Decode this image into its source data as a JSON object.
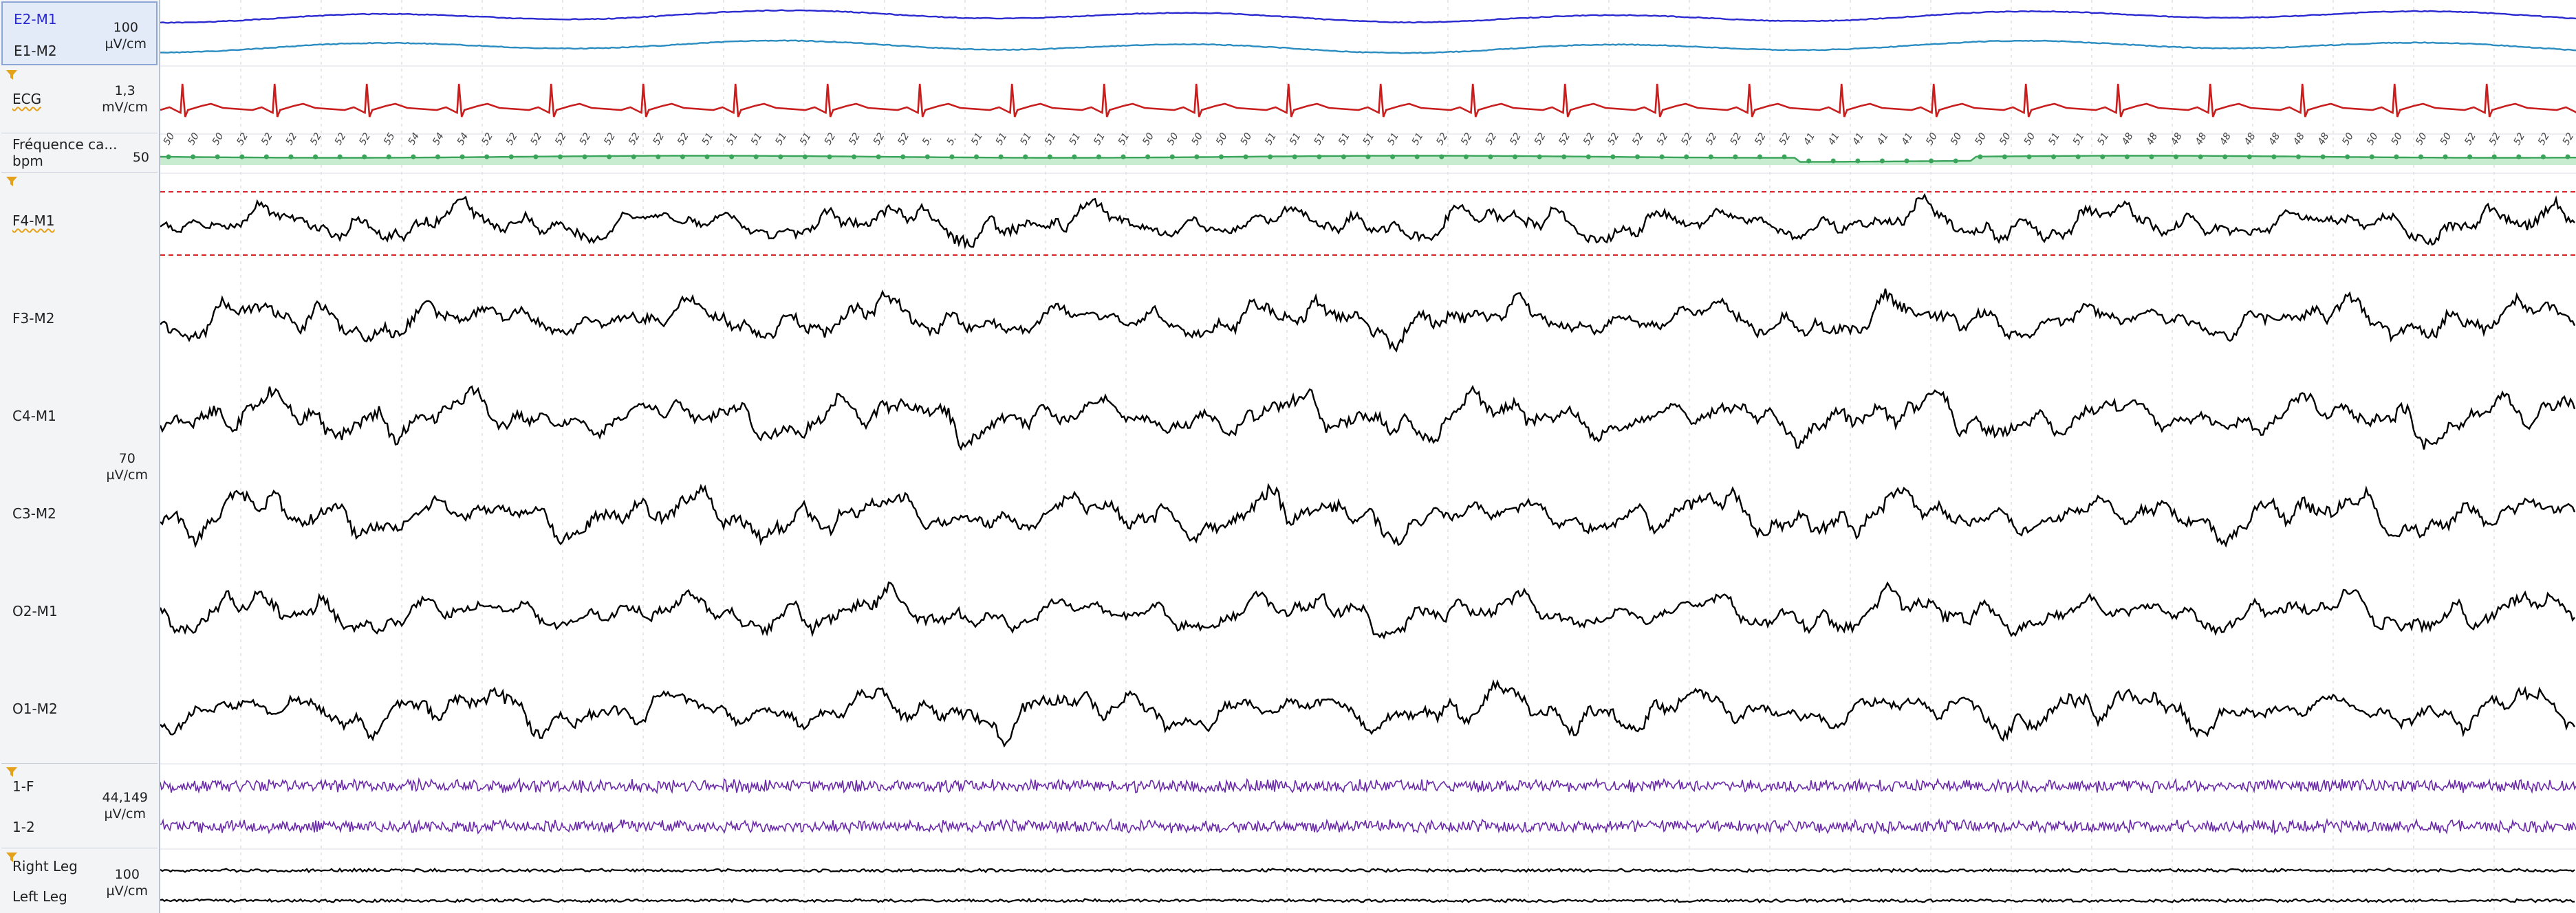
{
  "groups": {
    "eog": {
      "channels": [
        "E2-M1",
        "E1-M2"
      ],
      "scale_value": "100",
      "scale_unit": "µV/cm"
    },
    "ecg": {
      "channel": "ECG",
      "scale_value": "1,3",
      "scale_unit": "mV/cm"
    },
    "hr": {
      "channel": "Fréquence ca...",
      "unit": "bpm",
      "scale_value": "50",
      "beat_labels": [
        "50",
        "50",
        "50",
        "52",
        "52",
        "52",
        "52",
        "52",
        "52",
        "55",
        "54",
        "54",
        "54",
        "52",
        "52",
        "52",
        "52",
        "52",
        "52",
        "52",
        "52",
        "52",
        "51",
        "51",
        "51",
        "51",
        "51",
        "52",
        "52",
        "52",
        "52",
        "5.",
        "5.",
        "51",
        "51",
        "51",
        "51",
        "51",
        "51",
        "51",
        "50",
        "50",
        "50",
        "50",
        "50",
        "51",
        "51",
        "51",
        "51",
        "51",
        "51",
        "51",
        "52",
        "52",
        "52",
        "52",
        "52",
        "52",
        "52",
        "52",
        "52",
        "52",
        "52",
        "52",
        "52",
        "52",
        "52",
        "41",
        "41",
        "41",
        "41",
        "41",
        "50",
        "50",
        "50",
        "50",
        "50",
        "51",
        "51",
        "51",
        "48",
        "48",
        "48",
        "48",
        "48",
        "48",
        "48",
        "48",
        "48",
        "50",
        "50",
        "50",
        "50",
        "50",
        "52",
        "52",
        "52",
        "52",
        "52"
      ]
    },
    "eeg": {
      "channels": [
        "F4-M1",
        "F3-M2",
        "C4-M1",
        "C3-M2",
        "O2-M1",
        "O1-M2"
      ],
      "scale_value": "70",
      "scale_unit": "µV/cm"
    },
    "emg": {
      "channels": [
        "1-F",
        "1-2"
      ],
      "scale_value": "44,149",
      "scale_unit": "µV/cm"
    },
    "legs": {
      "channels": [
        "Right Leg",
        "Left Leg"
      ],
      "scale_value": "100",
      "scale_unit": "µV/cm"
    }
  },
  "colors": {
    "eog_top": "#2a2ad0",
    "eog_bottom": "#2a8cc0",
    "ecg": "#c81e1e",
    "hr_line": "#3aa55a",
    "hr_fill": "#c8ecd0",
    "eeg": "#000000",
    "emg": "#6a2aa8",
    "legs": "#000000",
    "threshold": "#e02020",
    "grid": "#d2d2d2",
    "filter_icon": "#e3a21a"
  }
}
